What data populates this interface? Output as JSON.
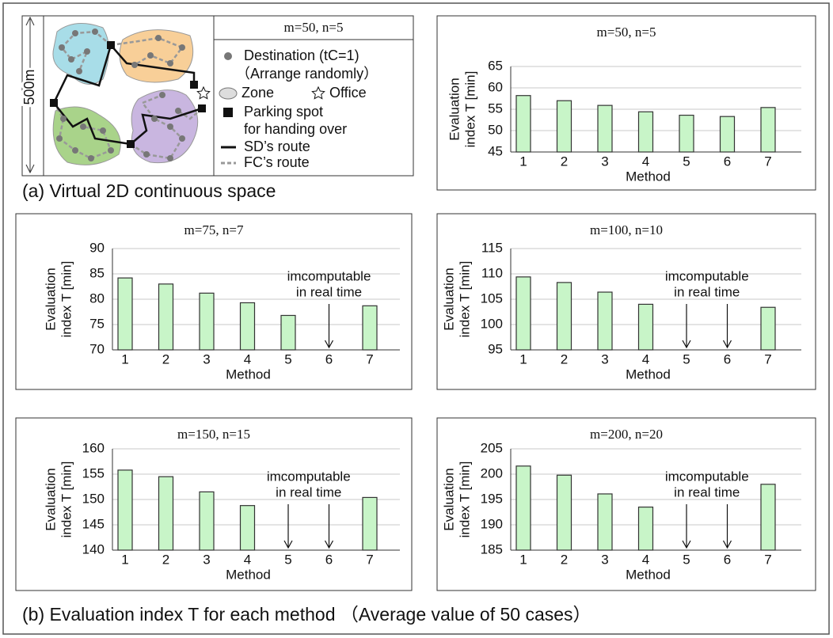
{
  "panel_a": {
    "scale_label": "500m",
    "legend_title": "m=50,  n=5",
    "legend": {
      "destination": [
        "Destination (tC=1)",
        "（Arrange randomly）"
      ],
      "zone": "Zone",
      "office": "Office",
      "parking": [
        "Parking spot",
        "for handing over"
      ],
      "sd_route": "SD’s route",
      "fc_route": "FC’s route"
    }
  },
  "caption_a": "(a) Virtual 2D continuous space",
  "caption_b": "(b) Evaluation index T for each method （Average value of 50 cases）",
  "chart_data": [
    {
      "type": "bar",
      "title": "m=50, n=5",
      "y_label": [
        "Evaluation",
        "index T [min]"
      ],
      "x_label": "Method",
      "categories": [
        "1",
        "2",
        "3",
        "4",
        "5",
        "6",
        "7"
      ],
      "values": [
        58.2,
        57,
        55.9,
        54.4,
        53.6,
        53.3,
        55.4
      ],
      "color": "#c8f5c8",
      "ylim": [
        45,
        65
      ],
      "yticks": [
        45,
        50,
        55,
        60,
        65
      ],
      "grid": true
    },
    {
      "type": "bar",
      "title": "m=75, n=7",
      "y_label": [
        "Evaluation",
        "index T [min]"
      ],
      "x_label": "Method",
      "categories": [
        "1",
        "2",
        "3",
        "4",
        "5",
        "6",
        "7"
      ],
      "values": [
        84.2,
        83,
        81.2,
        79.3,
        76.8,
        null,
        78.7
      ],
      "color": "#c8f5c8",
      "ylim": [
        70,
        90
      ],
      "yticks": [
        70,
        75,
        80,
        85,
        90
      ],
      "grid": true,
      "annotation": [
        "imcomputable",
        "in real time"
      ]
    },
    {
      "type": "bar",
      "title": "m=100, n=10",
      "y_label": [
        "Evaluation",
        "index T [min]"
      ],
      "x_label": "Method",
      "categories": [
        "1",
        "2",
        "3",
        "4",
        "5",
        "6",
        "7"
      ],
      "values": [
        109.4,
        108.3,
        106.4,
        104,
        null,
        null,
        103.4
      ],
      "color": "#c8f5c8",
      "ylim": [
        95,
        115
      ],
      "yticks": [
        95,
        100,
        105,
        110,
        115
      ],
      "grid": true,
      "annotation": [
        "imcomputable",
        "in real time"
      ]
    },
    {
      "type": "bar",
      "title": "m=150, n=15",
      "y_label": [
        "Evaluation",
        "index T [min]"
      ],
      "x_label": "Method",
      "categories": [
        "1",
        "2",
        "3",
        "4",
        "5",
        "6",
        "7"
      ],
      "values": [
        155.8,
        154.5,
        151.5,
        148.8,
        null,
        null,
        150.4
      ],
      "color": "#c8f5c8",
      "ylim": [
        140,
        160
      ],
      "yticks": [
        140,
        145,
        150,
        155,
        160
      ],
      "grid": true,
      "annotation": [
        "imcomputable",
        "in real time"
      ]
    },
    {
      "type": "bar",
      "title": "m=200, n=20",
      "y_label": [
        "Evaluation",
        "index T [min]"
      ],
      "x_label": "Method",
      "categories": [
        "1",
        "2",
        "3",
        "4",
        "5",
        "6",
        "7"
      ],
      "values": [
        201.6,
        199.8,
        196.1,
        193.5,
        null,
        null,
        198
      ],
      "color": "#c8f5c8",
      "ylim": [
        185,
        205
      ],
      "yticks": [
        185,
        190,
        195,
        200,
        205
      ],
      "grid": true,
      "annotation": [
        "imcomputable",
        "in real time"
      ]
    }
  ]
}
